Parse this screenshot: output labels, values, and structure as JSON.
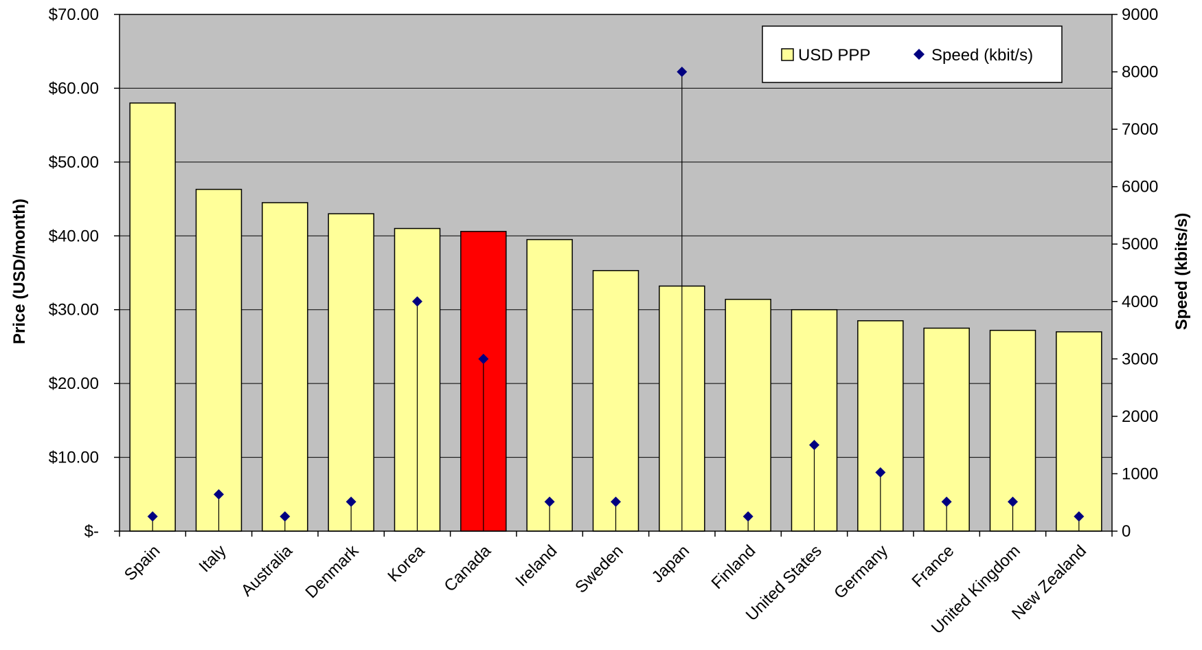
{
  "chart_data": {
    "type": "bar",
    "categories": [
      "Spain",
      "Italy",
      "Australia",
      "Denmark",
      "Korea",
      "Canada",
      "Ireland",
      "Sweden",
      "Japan",
      "Finland",
      "United States",
      "Germany",
      "France",
      "United Kingdom",
      "New Zealand"
    ],
    "series": [
      {
        "name": "USD PPP",
        "type": "bar",
        "axis": "left",
        "values": [
          58.0,
          46.3,
          44.5,
          43.0,
          41.0,
          40.6,
          39.5,
          35.3,
          33.2,
          31.4,
          30.0,
          28.5,
          27.5,
          27.2,
          27.0
        ],
        "color": "#ffff99",
        "highlight": {
          "category": "Canada",
          "color": "#ff0000"
        }
      },
      {
        "name": "Speed (kbit/s)",
        "type": "scatter",
        "axis": "right",
        "values": [
          256,
          640,
          256,
          512,
          4000,
          3000,
          512,
          512,
          8000,
          256,
          1500,
          1024,
          512,
          512,
          256
        ],
        "color": "#000080",
        "marker": "diamond"
      }
    ],
    "ylabel": "Price (USD/month)",
    "y2label": "Speed (kbits/s)",
    "ylim": [
      0,
      70
    ],
    "y2lim": [
      0,
      9000
    ],
    "y_ticks": [
      "$-",
      "$10.00",
      "$20.00",
      "$30.00",
      "$40.00",
      "$50.00",
      "$60.00",
      "$70.00"
    ],
    "y2_ticks": [
      "0",
      "1000",
      "2000",
      "3000",
      "4000",
      "5000",
      "6000",
      "7000",
      "8000",
      "9000"
    ],
    "grid": true,
    "legend_position": "top-right",
    "colors": {
      "plot_background": "#c0c0c0",
      "bar_border": "#000000",
      "gridline": "#000000"
    }
  }
}
